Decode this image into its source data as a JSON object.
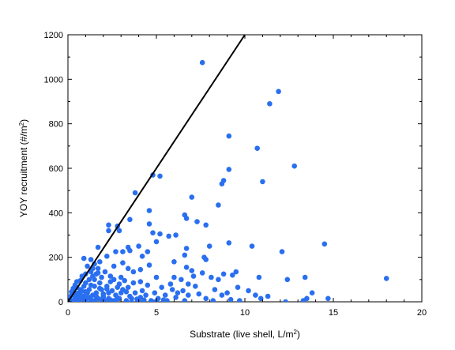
{
  "chart_data": {
    "type": "scatter",
    "xlabel": "Substrate (live shell, L/m",
    "xlabel_sup": "2",
    "xlabel_end": ")",
    "ylabel": "YOY recruitment (#/m",
    "ylabel_sup": "2",
    "ylabel_end": ")",
    "xlim": [
      0,
      20
    ],
    "ylim": [
      0,
      1200
    ],
    "xticks": [
      0,
      5,
      10,
      15,
      20
    ],
    "yticks": [
      0,
      200,
      400,
      600,
      800,
      1000,
      1200
    ],
    "grid": false,
    "legend": "none",
    "marker_color": "#2a6ff0",
    "line_color": "#000000",
    "reference_line": {
      "x": [
        0,
        10
      ],
      "y": [
        0,
        1200
      ]
    },
    "points": [
      [
        7.6,
        1075
      ],
      [
        11.9,
        945
      ],
      [
        11.4,
        890
      ],
      [
        9.1,
        745
      ],
      [
        10.7,
        690
      ],
      [
        12.8,
        610
      ],
      [
        9.1,
        595
      ],
      [
        4.8,
        570
      ],
      [
        5.2,
        565
      ],
      [
        8.8,
        545
      ],
      [
        8.7,
        530
      ],
      [
        11.0,
        540
      ],
      [
        3.8,
        490
      ],
      [
        7.0,
        470
      ],
      [
        4.6,
        410
      ],
      [
        8.5,
        435
      ],
      [
        6.6,
        390
      ],
      [
        6.7,
        375
      ],
      [
        3.5,
        370
      ],
      [
        7.3,
        360
      ],
      [
        2.3,
        345
      ],
      [
        4.6,
        350
      ],
      [
        2.8,
        340
      ],
      [
        7.8,
        345
      ],
      [
        2.9,
        320
      ],
      [
        2.3,
        320
      ],
      [
        5.2,
        305
      ],
      [
        4.8,
        310
      ],
      [
        5.7,
        295
      ],
      [
        6.1,
        300
      ],
      [
        9.1,
        265
      ],
      [
        14.5,
        260
      ],
      [
        5.0,
        270
      ],
      [
        4.0,
        250
      ],
      [
        8.0,
        250
      ],
      [
        10.4,
        250
      ],
      [
        1.7,
        245
      ],
      [
        3.4,
        245
      ],
      [
        3.5,
        230
      ],
      [
        6.7,
        240
      ],
      [
        4.5,
        225
      ],
      [
        12.1,
        225
      ],
      [
        2.7,
        225
      ],
      [
        3.1,
        225
      ],
      [
        6.6,
        210
      ],
      [
        2.2,
        205
      ],
      [
        4.2,
        205
      ],
      [
        7.7,
        200
      ],
      [
        0.9,
        195
      ],
      [
        1.3,
        190
      ],
      [
        7.8,
        190
      ],
      [
        1.8,
        180
      ],
      [
        3.1,
        175
      ],
      [
        6.0,
        180
      ],
      [
        1.5,
        170
      ],
      [
        4.6,
        165
      ],
      [
        1.1,
        160
      ],
      [
        2.6,
        160
      ],
      [
        6.7,
        155
      ],
      [
        1.7,
        150
      ],
      [
        3.4,
        150
      ],
      [
        4.1,
        145
      ],
      [
        7.0,
        140
      ],
      [
        1.3,
        135
      ],
      [
        2.1,
        135
      ],
      [
        3.7,
        135
      ],
      [
        9.5,
        135
      ],
      [
        1.0,
        125
      ],
      [
        1.6,
        125
      ],
      [
        7.6,
        130
      ],
      [
        8.8,
        125
      ],
      [
        0.8,
        115
      ],
      [
        1.4,
        115
      ],
      [
        2.4,
        115
      ],
      [
        7.1,
        115
      ],
      [
        9.3,
        120
      ],
      [
        1.9,
        110
      ],
      [
        5.0,
        110
      ],
      [
        6.0,
        110
      ],
      [
        8.1,
        110
      ],
      [
        10.8,
        110
      ],
      [
        12.4,
        100
      ],
      [
        13.4,
        110
      ],
      [
        18.0,
        105
      ],
      [
        0.7,
        95
      ],
      [
        1.2,
        100
      ],
      [
        2.6,
        100
      ],
      [
        3.2,
        95
      ],
      [
        4.1,
        90
      ],
      [
        6.4,
        100
      ],
      [
        8.5,
        100
      ],
      [
        0.5,
        90
      ],
      [
        1.0,
        85
      ],
      [
        1.8,
        85
      ],
      [
        2.9,
        80
      ],
      [
        3.7,
        85
      ],
      [
        4.5,
        75
      ],
      [
        5.8,
        80
      ],
      [
        6.8,
        80
      ],
      [
        0.4,
        75
      ],
      [
        0.9,
        70
      ],
      [
        1.5,
        70
      ],
      [
        2.2,
        70
      ],
      [
        2.8,
        65
      ],
      [
        3.4,
        65
      ],
      [
        5.3,
        65
      ],
      [
        7.2,
        70
      ],
      [
        9.6,
        65
      ],
      [
        0.3,
        60
      ],
      [
        0.7,
        55
      ],
      [
        1.2,
        55
      ],
      [
        1.9,
        55
      ],
      [
        2.5,
        50
      ],
      [
        3.1,
        55
      ],
      [
        4.2,
        50
      ],
      [
        5.9,
        55
      ],
      [
        6.5,
        50
      ],
      [
        8.3,
        55
      ],
      [
        10.2,
        50
      ],
      [
        0.2,
        45
      ],
      [
        0.6,
        40
      ],
      [
        1.1,
        40
      ],
      [
        1.6,
        40
      ],
      [
        2.3,
        40
      ],
      [
        3.0,
        40
      ],
      [
        3.8,
        40
      ],
      [
        4.9,
        40
      ],
      [
        6.2,
        40
      ],
      [
        7.4,
        35
      ],
      [
        9.0,
        40
      ],
      [
        13.8,
        40
      ],
      [
        0.2,
        30
      ],
      [
        0.5,
        30
      ],
      [
        0.9,
        25
      ],
      [
        1.4,
        30
      ],
      [
        2.0,
        25
      ],
      [
        2.7,
        30
      ],
      [
        3.5,
        25
      ],
      [
        4.4,
        30
      ],
      [
        5.5,
        30
      ],
      [
        6.8,
        30
      ],
      [
        8.7,
        30
      ],
      [
        10.6,
        30
      ],
      [
        11.3,
        25
      ],
      [
        0.1,
        20
      ],
      [
        0.4,
        15
      ],
      [
        0.8,
        15
      ],
      [
        1.2,
        20
      ],
      [
        1.7,
        15
      ],
      [
        2.3,
        15
      ],
      [
        2.9,
        15
      ],
      [
        3.6,
        15
      ],
      [
        4.1,
        20
      ],
      [
        5.1,
        15
      ],
      [
        6.1,
        20
      ],
      [
        7.8,
        15
      ],
      [
        9.2,
        10
      ],
      [
        10.9,
        15
      ],
      [
        13.5,
        15
      ],
      [
        14.7,
        15
      ],
      [
        0.1,
        5
      ],
      [
        0.3,
        5
      ],
      [
        0.6,
        5
      ],
      [
        1.0,
        5
      ],
      [
        1.5,
        5
      ],
      [
        2.1,
        5
      ],
      [
        2.6,
        5
      ],
      [
        3.3,
        5
      ],
      [
        4.0,
        5
      ],
      [
        4.7,
        5
      ],
      [
        5.6,
        5
      ],
      [
        6.6,
        5
      ],
      [
        8.2,
        5
      ],
      [
        9.7,
        5
      ],
      [
        12.3,
        0
      ],
      [
        13.3,
        5
      ],
      [
        0.9,
        10
      ],
      [
        1.3,
        10
      ],
      [
        1.9,
        10
      ],
      [
        2.4,
        8
      ],
      [
        0.6,
        12
      ],
      [
        1.1,
        18
      ],
      [
        1.6,
        25
      ],
      [
        2.0,
        35
      ],
      [
        0.7,
        30
      ],
      [
        1.0,
        45
      ],
      [
        1.8,
        60
      ],
      [
        0.5,
        65
      ],
      [
        2.4,
        90
      ],
      [
        3.0,
        110
      ],
      [
        1.4,
        150
      ],
      [
        0.8,
        48
      ],
      [
        1.3,
        75
      ],
      [
        2.0,
        22
      ],
      [
        2.2,
        58
      ],
      [
        1.5,
        100
      ],
      [
        1.7,
        130
      ],
      [
        0.4,
        38
      ],
      [
        3.3,
        45
      ],
      [
        2.8,
        18
      ],
      [
        3.9,
        12
      ],
      [
        4.3,
        8
      ],
      [
        5.0,
        2
      ],
      [
        1.0,
        0
      ],
      [
        1.9,
        0
      ],
      [
        2.7,
        0
      ],
      [
        0.4,
        0
      ],
      [
        3.6,
        0
      ],
      [
        4.8,
        0
      ],
      [
        5.4,
        8
      ]
    ]
  }
}
